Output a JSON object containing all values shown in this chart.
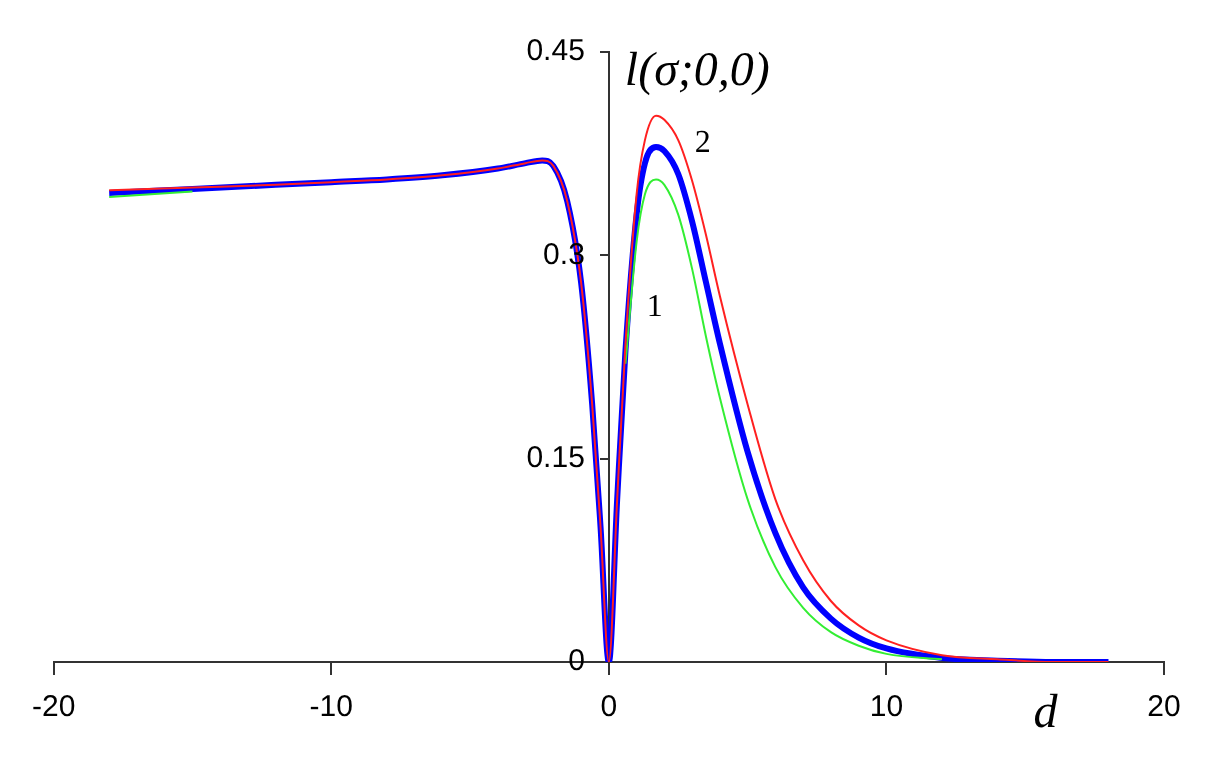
{
  "chart_data": {
    "type": "line",
    "xlabel": "d",
    "ylabel": "l(σ;0,0)",
    "x": [
      -18,
      -15,
      -12,
      -10,
      -8,
      -6,
      -4,
      -3,
      -2.4,
      -2,
      -1.5,
      -1,
      -0.6,
      -0.3,
      0,
      0.3,
      0.6,
      1,
      1.3,
      1.7,
      2,
      2.5,
      3,
      3.5,
      4,
      5,
      6,
      7,
      8,
      9,
      10,
      12,
      14,
      16,
      18
    ],
    "series": [
      {
        "color": "#0000ff",
        "values": [
          0.346,
          0.349,
          0.352,
          0.354,
          0.356,
          0.359,
          0.364,
          0.368,
          0.37,
          0.366,
          0.34,
          0.28,
          0.19,
          0.1,
          0,
          0.12,
          0.23,
          0.33,
          0.368,
          0.38,
          0.377,
          0.36,
          0.325,
          0.28,
          0.235,
          0.155,
          0.095,
          0.055,
          0.032,
          0.018,
          0.01,
          0.003,
          0.001,
          0,
          0
        ]
      },
      {
        "color": "#33ee33",
        "values": [
          0.343,
          0.347,
          null,
          null,
          null,
          null,
          null,
          null,
          null,
          null,
          null,
          null,
          null,
          null,
          null,
          null,
          0.22,
          0.31,
          0.345,
          0.356,
          0.352,
          0.33,
          0.29,
          0.24,
          0.195,
          0.12,
          0.07,
          0.04,
          0.022,
          0.012,
          0.006,
          0.002,
          null,
          null,
          null
        ]
      },
      {
        "color": "#ff2020",
        "values": [
          0.348,
          0.35,
          0.352,
          0.354,
          0.356,
          0.359,
          0.364,
          0.368,
          0.37,
          0.366,
          0.34,
          0.28,
          0.19,
          0.1,
          0,
          0.12,
          0.235,
          0.345,
          0.385,
          0.403,
          0.4,
          0.385,
          0.355,
          0.315,
          0.27,
          0.19,
          0.12,
          0.075,
          0.045,
          0.027,
          0.016,
          0.005,
          0.002,
          0,
          0
        ]
      }
    ],
    "annotations": [
      "1",
      "2"
    ],
    "xlim": [
      -20,
      20
    ],
    "xticks": [
      -20,
      -10,
      0,
      10,
      20
    ],
    "ylim": [
      0,
      0.45
    ],
    "yticks": [
      0,
      0.15,
      0.3,
      0.45
    ],
    "grid": false,
    "legend": false,
    "marker": "none",
    "line_style": "solid"
  }
}
